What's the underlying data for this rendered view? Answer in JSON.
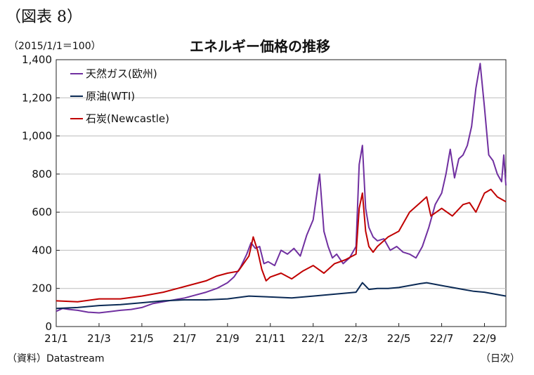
{
  "figure_label": "（図表 8）",
  "base_note": "（2015/1/1＝100）",
  "source": "（資料）Datastream",
  "x_unit": "（日次）",
  "chart_data": {
    "type": "line",
    "title": "エネルギー価格の推移",
    "ylabel": "",
    "xlabel": "",
    "ylim": [
      0,
      1400
    ],
    "yticks": [
      0,
      200,
      400,
      600,
      800,
      1000,
      1200,
      1400
    ],
    "ytick_labels": [
      "0",
      "200",
      "400",
      "600",
      "800",
      "1,000",
      "1,200",
      "1,400"
    ],
    "xlim": [
      0,
      21
    ],
    "xticks": [
      0,
      2,
      4,
      6,
      8,
      10,
      12,
      14,
      16,
      18,
      20
    ],
    "xtick_labels": [
      "21/1",
      "21/3",
      "21/5",
      "21/7",
      "21/9",
      "21/11",
      "22/1",
      "22/3",
      "22/5",
      "22/7",
      "22/9"
    ],
    "legend_position": "top-left",
    "grid": "horizontal",
    "series": [
      {
        "name": "天然ガス(欧州)",
        "color": "#7030a0",
        "points": [
          [
            0,
            80
          ],
          [
            0.3,
            95
          ],
          [
            0.6,
            90
          ],
          [
            1,
            85
          ],
          [
            1.5,
            75
          ],
          [
            2,
            72
          ],
          [
            2.5,
            78
          ],
          [
            3,
            85
          ],
          [
            3.5,
            90
          ],
          [
            4,
            100
          ],
          [
            4.5,
            120
          ],
          [
            5,
            130
          ],
          [
            5.5,
            140
          ],
          [
            6,
            150
          ],
          [
            6.5,
            165
          ],
          [
            7,
            180
          ],
          [
            7.5,
            200
          ],
          [
            8,
            230
          ],
          [
            8.3,
            260
          ],
          [
            8.6,
            310
          ],
          [
            8.9,
            380
          ],
          [
            9.1,
            440
          ],
          [
            9.3,
            410
          ],
          [
            9.5,
            420
          ],
          [
            9.7,
            330
          ],
          [
            9.9,
            340
          ],
          [
            10.2,
            320
          ],
          [
            10.5,
            400
          ],
          [
            10.8,
            380
          ],
          [
            11.1,
            410
          ],
          [
            11.4,
            370
          ],
          [
            11.7,
            480
          ],
          [
            12.0,
            560
          ],
          [
            12.3,
            800
          ],
          [
            12.5,
            500
          ],
          [
            12.7,
            420
          ],
          [
            12.9,
            360
          ],
          [
            13.1,
            380
          ],
          [
            13.4,
            330
          ],
          [
            13.7,
            360
          ],
          [
            14.0,
            420
          ],
          [
            14.15,
            850
          ],
          [
            14.3,
            950
          ],
          [
            14.45,
            620
          ],
          [
            14.6,
            520
          ],
          [
            14.8,
            470
          ],
          [
            15.0,
            450
          ],
          [
            15.3,
            460
          ],
          [
            15.6,
            400
          ],
          [
            15.9,
            420
          ],
          [
            16.2,
            390
          ],
          [
            16.5,
            380
          ],
          [
            16.8,
            360
          ],
          [
            17.1,
            420
          ],
          [
            17.4,
            520
          ],
          [
            17.7,
            640
          ],
          [
            18.0,
            700
          ],
          [
            18.2,
            800
          ],
          [
            18.4,
            930
          ],
          [
            18.6,
            780
          ],
          [
            18.8,
            880
          ],
          [
            19.0,
            900
          ],
          [
            19.2,
            950
          ],
          [
            19.4,
            1050
          ],
          [
            19.6,
            1250
          ],
          [
            19.8,
            1380
          ],
          [
            20.0,
            1150
          ],
          [
            20.2,
            900
          ],
          [
            20.4,
            870
          ],
          [
            20.6,
            800
          ],
          [
            20.8,
            760
          ],
          [
            20.9,
            900
          ],
          [
            21.0,
            740
          ]
        ]
      },
      {
        "name": "原油(WTI)",
        "color": "#0b2a55",
        "points": [
          [
            0,
            95
          ],
          [
            1,
            100
          ],
          [
            2,
            110
          ],
          [
            3,
            115
          ],
          [
            4,
            125
          ],
          [
            5,
            135
          ],
          [
            6,
            140
          ],
          [
            7,
            140
          ],
          [
            8,
            145
          ],
          [
            9,
            160
          ],
          [
            10,
            155
          ],
          [
            11,
            150
          ],
          [
            12,
            160
          ],
          [
            13,
            170
          ],
          [
            14,
            180
          ],
          [
            14.3,
            230
          ],
          [
            14.6,
            195
          ],
          [
            15,
            200
          ],
          [
            15.5,
            200
          ],
          [
            16,
            205
          ],
          [
            17,
            225
          ],
          [
            17.3,
            230
          ],
          [
            18,
            215
          ],
          [
            18.5,
            205
          ],
          [
            19,
            195
          ],
          [
            19.5,
            185
          ],
          [
            20,
            180
          ],
          [
            20.5,
            170
          ],
          [
            21,
            160
          ]
        ]
      },
      {
        "name": "石炭(Newcastle)",
        "color": "#c00000",
        "points": [
          [
            0,
            135
          ],
          [
            1,
            130
          ],
          [
            2,
            145
          ],
          [
            3,
            145
          ],
          [
            4,
            160
          ],
          [
            5,
            180
          ],
          [
            6,
            210
          ],
          [
            7,
            240
          ],
          [
            7.5,
            265
          ],
          [
            8,
            280
          ],
          [
            8.5,
            290
          ],
          [
            9,
            370
          ],
          [
            9.2,
            470
          ],
          [
            9.4,
            400
          ],
          [
            9.6,
            300
          ],
          [
            9.8,
            240
          ],
          [
            10,
            260
          ],
          [
            10.5,
            280
          ],
          [
            11,
            250
          ],
          [
            11.5,
            290
          ],
          [
            12,
            320
          ],
          [
            12.5,
            280
          ],
          [
            13,
            330
          ],
          [
            13.5,
            350
          ],
          [
            14,
            380
          ],
          [
            14.15,
            620
          ],
          [
            14.3,
            700
          ],
          [
            14.45,
            500
          ],
          [
            14.6,
            420
          ],
          [
            14.8,
            390
          ],
          [
            15,
            420
          ],
          [
            15.5,
            470
          ],
          [
            16,
            500
          ],
          [
            16.5,
            600
          ],
          [
            17,
            650
          ],
          [
            17.3,
            680
          ],
          [
            17.5,
            580
          ],
          [
            18,
            620
          ],
          [
            18.5,
            580
          ],
          [
            19,
            640
          ],
          [
            19.3,
            650
          ],
          [
            19.6,
            600
          ],
          [
            20,
            700
          ],
          [
            20.3,
            720
          ],
          [
            20.6,
            680
          ],
          [
            21,
            655
          ]
        ]
      }
    ]
  }
}
